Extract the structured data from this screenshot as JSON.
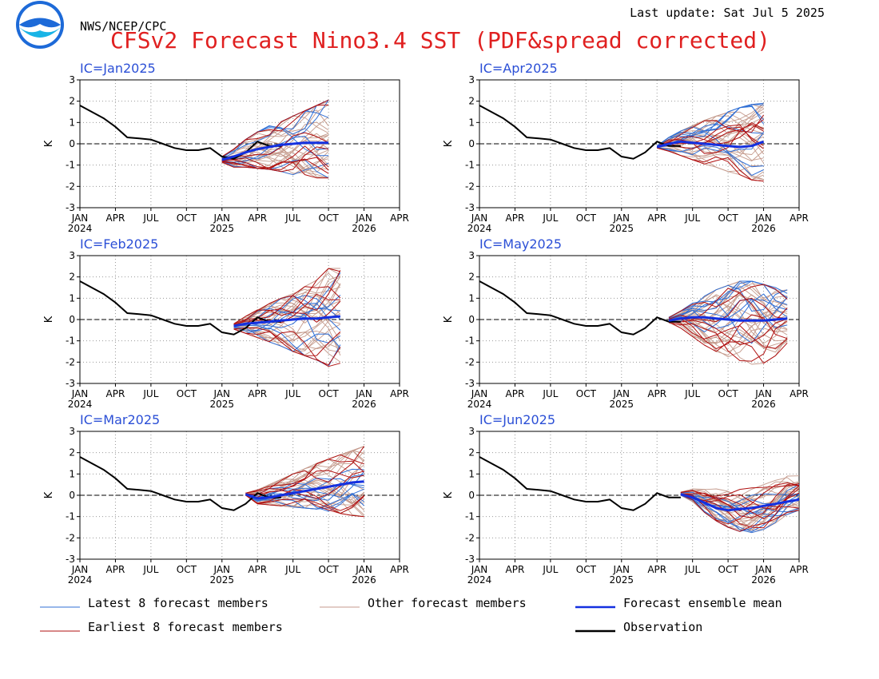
{
  "header": {
    "logo_text": "NOAA",
    "agency": "NWS/NCEP/CPC",
    "last_update": "Last update: Sat Jul 5 2025",
    "title": "CFSv2 Forecast Nino3.4 SST (PDF&spread corrected)"
  },
  "colors": {
    "latest": "#2f6fd6",
    "other": "#c49a8c",
    "mean": "#1430e0",
    "earliest": "#b01010",
    "observation": "#000000",
    "title": "#e02020",
    "ic_label": "#2b4fd6"
  },
  "legend": [
    {
      "key": "latest",
      "label": "Latest 8 forecast members",
      "color": "#2f6fd6"
    },
    {
      "key": "other",
      "label": "Other forecast members",
      "color": "#c49a8c"
    },
    {
      "key": "mean",
      "label": "Forecast ensemble mean",
      "color": "#1430e0"
    },
    {
      "key": "earliest",
      "label": "Earliest 8 forecast members",
      "color": "#b01010"
    },
    {
      "key": "observation",
      "label": "Observation",
      "color": "#000000"
    }
  ],
  "chart_data": [
    {
      "type": "line",
      "title": "IC=Jan2025",
      "ylabel": "K",
      "ylim": [
        -3,
        3
      ],
      "yticks": [
        -3,
        -2,
        -1,
        0,
        1,
        2,
        3
      ],
      "xlim": [
        "2024-01",
        "2026-04"
      ],
      "xticks": [
        {
          "date": "2024-01",
          "label": "JAN",
          "year": "2024"
        },
        {
          "date": "2024-04",
          "label": "APR",
          "year": ""
        },
        {
          "date": "2024-07",
          "label": "JUL",
          "year": ""
        },
        {
          "date": "2024-10",
          "label": "OCT",
          "year": ""
        },
        {
          "date": "2025-01",
          "label": "JAN",
          "year": "2025"
        },
        {
          "date": "2025-04",
          "label": "APR",
          "year": ""
        },
        {
          "date": "2025-07",
          "label": "JUL",
          "year": ""
        },
        {
          "date": "2025-10",
          "label": "OCT",
          "year": ""
        },
        {
          "date": "2026-01",
          "label": "JAN",
          "year": "2026"
        },
        {
          "date": "2026-04",
          "label": "APR",
          "year": ""
        }
      ],
      "grid": true,
      "observation": {
        "start": "2024-01",
        "values": [
          1.8,
          1.5,
          1.2,
          0.8,
          0.3,
          0.25,
          0.2,
          0.0,
          -0.2,
          -0.3,
          -0.3,
          -0.2,
          -0.6,
          -0.7,
          -0.4,
          0.1,
          -0.1,
          -0.1
        ]
      },
      "mean": {
        "start": "2025-01",
        "values": [
          -0.75,
          -0.6,
          -0.4,
          -0.25,
          -0.15,
          -0.05,
          0.0,
          0.05,
          0.05,
          0.05
        ]
      },
      "envelope": {
        "start": "2025-01",
        "low": [
          -0.9,
          -1.1,
          -1.1,
          -1.15,
          -1.2,
          -1.3,
          -1.45,
          -1.55,
          -1.6,
          -1.6
        ],
        "high": [
          -0.6,
          -0.25,
          0.2,
          0.55,
          0.85,
          1.1,
          1.3,
          1.55,
          1.8,
          2.05
        ]
      }
    },
    {
      "type": "line",
      "title": "IC=Apr2025",
      "ylabel": "K",
      "ylim": [
        -3,
        3
      ],
      "yticks": [
        -3,
        -2,
        -1,
        0,
        1,
        2,
        3
      ],
      "xlim": [
        "2024-01",
        "2026-04"
      ],
      "xticks": [
        {
          "date": "2024-01",
          "label": "JAN",
          "year": "2024"
        },
        {
          "date": "2024-04",
          "label": "APR",
          "year": ""
        },
        {
          "date": "2024-07",
          "label": "JUL",
          "year": ""
        },
        {
          "date": "2024-10",
          "label": "OCT",
          "year": ""
        },
        {
          "date": "2025-01",
          "label": "JAN",
          "year": "2025"
        },
        {
          "date": "2025-04",
          "label": "APR",
          "year": ""
        },
        {
          "date": "2025-07",
          "label": "JUL",
          "year": ""
        },
        {
          "date": "2025-10",
          "label": "OCT",
          "year": ""
        },
        {
          "date": "2026-01",
          "label": "JAN",
          "year": "2026"
        },
        {
          "date": "2026-04",
          "label": "APR",
          "year": ""
        }
      ],
      "grid": true,
      "observation": {
        "start": "2024-01",
        "values": [
          1.8,
          1.5,
          1.2,
          0.8,
          0.3,
          0.25,
          0.2,
          0.0,
          -0.2,
          -0.3,
          -0.3,
          -0.2,
          -0.6,
          -0.7,
          -0.4,
          0.1,
          -0.1,
          -0.1
        ]
      },
      "mean": {
        "start": "2025-04",
        "values": [
          -0.15,
          0.0,
          0.1,
          0.05,
          0.0,
          -0.05,
          -0.1,
          -0.15,
          -0.1,
          0.1
        ]
      },
      "envelope": {
        "start": "2025-04",
        "low": [
          -0.2,
          -0.35,
          -0.55,
          -0.75,
          -0.95,
          -1.1,
          -1.3,
          -1.45,
          -1.7,
          -1.75
        ],
        "high": [
          -0.1,
          0.3,
          0.6,
          0.85,
          1.1,
          1.3,
          1.5,
          1.7,
          1.85,
          1.9
        ]
      }
    },
    {
      "type": "line",
      "title": "IC=Feb2025",
      "ylabel": "K",
      "ylim": [
        -3,
        3
      ],
      "yticks": [
        -3,
        -2,
        -1,
        0,
        1,
        2,
        3
      ],
      "xlim": [
        "2024-01",
        "2026-04"
      ],
      "xticks": [
        {
          "date": "2024-01",
          "label": "JAN",
          "year": "2024"
        },
        {
          "date": "2024-04",
          "label": "APR",
          "year": ""
        },
        {
          "date": "2024-07",
          "label": "JUL",
          "year": ""
        },
        {
          "date": "2024-10",
          "label": "OCT",
          "year": ""
        },
        {
          "date": "2025-01",
          "label": "JAN",
          "year": "2025"
        },
        {
          "date": "2025-04",
          "label": "APR",
          "year": ""
        },
        {
          "date": "2025-07",
          "label": "JUL",
          "year": ""
        },
        {
          "date": "2025-10",
          "label": "OCT",
          "year": ""
        },
        {
          "date": "2026-01",
          "label": "JAN",
          "year": "2026"
        },
        {
          "date": "2026-04",
          "label": "APR",
          "year": ""
        }
      ],
      "grid": true,
      "observation": {
        "start": "2024-01",
        "values": [
          1.8,
          1.5,
          1.2,
          0.8,
          0.3,
          0.25,
          0.2,
          0.0,
          -0.2,
          -0.3,
          -0.3,
          -0.2,
          -0.6,
          -0.7,
          -0.4,
          0.1,
          -0.1,
          -0.1
        ]
      },
      "mean": {
        "start": "2025-02",
        "values": [
          -0.3,
          -0.2,
          -0.15,
          -0.1,
          -0.05,
          0.0,
          0.05,
          0.05,
          0.1,
          0.15
        ]
      },
      "envelope": {
        "start": "2025-02",
        "low": [
          -0.45,
          -0.65,
          -0.85,
          -1.05,
          -1.25,
          -1.5,
          -1.7,
          -1.9,
          -2.2,
          -2.05
        ],
        "high": [
          -0.2,
          0.15,
          0.45,
          0.75,
          1.0,
          1.25,
          1.55,
          1.85,
          2.4,
          2.4
        ]
      }
    },
    {
      "type": "line",
      "title": "IC=May2025",
      "ylabel": "K",
      "ylim": [
        -3,
        3
      ],
      "yticks": [
        -3,
        -2,
        -1,
        0,
        1,
        2,
        3
      ],
      "xlim": [
        "2024-01",
        "2026-04"
      ],
      "xticks": [
        {
          "date": "2024-01",
          "label": "JAN",
          "year": "2024"
        },
        {
          "date": "2024-04",
          "label": "APR",
          "year": ""
        },
        {
          "date": "2024-07",
          "label": "JUL",
          "year": ""
        },
        {
          "date": "2024-10",
          "label": "OCT",
          "year": ""
        },
        {
          "date": "2025-01",
          "label": "JAN",
          "year": "2025"
        },
        {
          "date": "2025-04",
          "label": "APR",
          "year": ""
        },
        {
          "date": "2025-07",
          "label": "JUL",
          "year": ""
        },
        {
          "date": "2025-10",
          "label": "OCT",
          "year": ""
        },
        {
          "date": "2026-01",
          "label": "JAN",
          "year": "2026"
        },
        {
          "date": "2026-04",
          "label": "APR",
          "year": ""
        }
      ],
      "grid": true,
      "observation": {
        "start": "2024-01",
        "values": [
          1.8,
          1.5,
          1.2,
          0.8,
          0.3,
          0.25,
          0.2,
          0.0,
          -0.2,
          -0.3,
          -0.3,
          -0.2,
          -0.6,
          -0.7,
          -0.4,
          0.1,
          -0.1,
          -0.1
        ]
      },
      "mean": {
        "start": "2025-05",
        "values": [
          -0.05,
          0.05,
          0.1,
          0.1,
          0.05,
          0.0,
          -0.05,
          -0.05,
          -0.05,
          0.0,
          0.05
        ]
      },
      "envelope": {
        "start": "2025-05",
        "low": [
          -0.15,
          -0.4,
          -0.8,
          -1.2,
          -1.5,
          -1.75,
          -1.95,
          -2.1,
          -2.05,
          -1.7,
          -1.1
        ],
        "high": [
          0.1,
          0.4,
          0.8,
          1.1,
          1.4,
          1.6,
          1.8,
          1.8,
          1.65,
          1.5,
          1.4
        ]
      }
    },
    {
      "type": "line",
      "title": "IC=Mar2025",
      "ylabel": "K",
      "ylim": [
        -3,
        3
      ],
      "yticks": [
        -3,
        -2,
        -1,
        0,
        1,
        2,
        3
      ],
      "xlim": [
        "2024-01",
        "2026-04"
      ],
      "xticks": [
        {
          "date": "2024-01",
          "label": "JAN",
          "year": "2024"
        },
        {
          "date": "2024-04",
          "label": "APR",
          "year": ""
        },
        {
          "date": "2024-07",
          "label": "JUL",
          "year": ""
        },
        {
          "date": "2024-10",
          "label": "OCT",
          "year": ""
        },
        {
          "date": "2025-01",
          "label": "JAN",
          "year": "2025"
        },
        {
          "date": "2025-04",
          "label": "APR",
          "year": ""
        },
        {
          "date": "2025-07",
          "label": "JUL",
          "year": ""
        },
        {
          "date": "2025-10",
          "label": "OCT",
          "year": ""
        },
        {
          "date": "2026-01",
          "label": "JAN",
          "year": "2026"
        },
        {
          "date": "2026-04",
          "label": "APR",
          "year": ""
        }
      ],
      "grid": true,
      "observation": {
        "start": "2024-01",
        "values": [
          1.8,
          1.5,
          1.2,
          0.8,
          0.3,
          0.25,
          0.2,
          0.0,
          -0.2,
          -0.3,
          -0.3,
          -0.2,
          -0.6,
          -0.7,
          -0.4,
          0.1,
          -0.1,
          -0.1
        ]
      },
      "mean": {
        "start": "2025-03",
        "values": [
          0.05,
          -0.15,
          -0.1,
          0.0,
          0.1,
          0.2,
          0.3,
          0.4,
          0.5,
          0.6,
          0.65
        ]
      },
      "envelope": {
        "start": "2025-03",
        "low": [
          0.0,
          -0.4,
          -0.45,
          -0.5,
          -0.55,
          -0.6,
          -0.65,
          -0.75,
          -0.85,
          -0.95,
          -1.0
        ],
        "high": [
          0.1,
          0.25,
          0.5,
          0.75,
          1.0,
          1.25,
          1.5,
          1.7,
          1.9,
          2.1,
          2.3
        ]
      }
    },
    {
      "type": "line",
      "title": "IC=Jun2025",
      "ylabel": "K",
      "ylim": [
        -3,
        3
      ],
      "yticks": [
        -3,
        -2,
        -1,
        0,
        1,
        2,
        3
      ],
      "xlim": [
        "2024-01",
        "2026-04"
      ],
      "xticks": [
        {
          "date": "2024-01",
          "label": "JAN",
          "year": "2024"
        },
        {
          "date": "2024-04",
          "label": "APR",
          "year": ""
        },
        {
          "date": "2024-07",
          "label": "JUL",
          "year": ""
        },
        {
          "date": "2024-10",
          "label": "OCT",
          "year": ""
        },
        {
          "date": "2025-01",
          "label": "JAN",
          "year": "2025"
        },
        {
          "date": "2025-04",
          "label": "APR",
          "year": ""
        },
        {
          "date": "2025-07",
          "label": "JUL",
          "year": ""
        },
        {
          "date": "2025-10",
          "label": "OCT",
          "year": ""
        },
        {
          "date": "2026-01",
          "label": "JAN",
          "year": "2026"
        },
        {
          "date": "2026-04",
          "label": "APR",
          "year": ""
        }
      ],
      "grid": true,
      "observation": {
        "start": "2024-01",
        "values": [
          1.8,
          1.5,
          1.2,
          0.8,
          0.3,
          0.25,
          0.2,
          0.0,
          -0.2,
          -0.3,
          -0.3,
          -0.2,
          -0.6,
          -0.7,
          -0.4,
          0.1,
          -0.1,
          -0.1
        ]
      },
      "mean": {
        "start": "2025-06",
        "values": [
          0.05,
          -0.1,
          -0.35,
          -0.6,
          -0.7,
          -0.65,
          -0.6,
          -0.5,
          -0.4,
          -0.3,
          -0.2
        ]
      },
      "envelope": {
        "start": "2025-06",
        "low": [
          0.0,
          -0.3,
          -0.8,
          -1.2,
          -1.5,
          -1.7,
          -1.75,
          -1.6,
          -1.3,
          -0.9,
          -0.7
        ],
        "high": [
          0.15,
          0.3,
          0.3,
          0.3,
          0.3,
          0.3,
          0.35,
          0.5,
          0.7,
          0.9,
          0.95
        ]
      }
    }
  ]
}
